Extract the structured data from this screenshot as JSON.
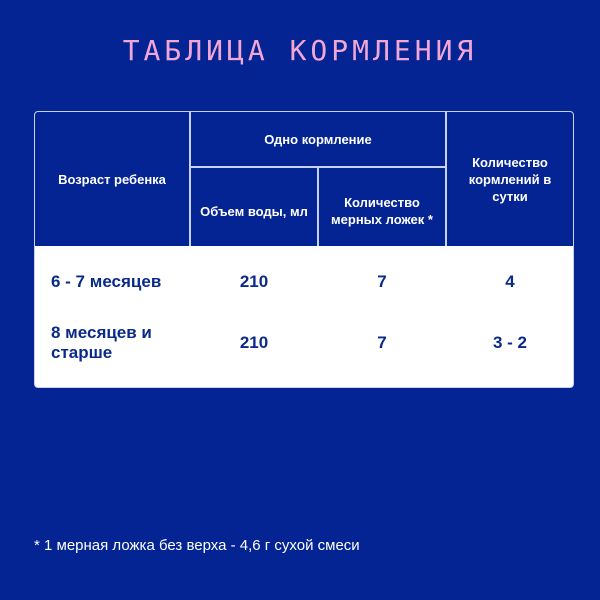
{
  "title": "ТАБЛИЦА КОРМЛЕНИЯ",
  "table": {
    "headers": {
      "age": "Возраст ребенка",
      "one_feeding": "Одно кормление",
      "water": "Объем воды, мл",
      "spoons": "Количество мерных ложек *",
      "per_day": "Количество кормлений в сутки"
    },
    "rows": [
      {
        "age": "6 - 7 месяцев",
        "water": "210",
        "spoons": "7",
        "per_day": "4"
      },
      {
        "age": "8 месяцев и старше",
        "water": "210",
        "spoons": "7",
        "per_day": "3 - 2"
      }
    ]
  },
  "footnote": "* 1 мерная ложка без верха - 4,6 г сухой смеси",
  "colors": {
    "background": "#032492",
    "title": "#f2a6d6",
    "table_body": "#ffffff",
    "body_text": "#0a2a8a"
  }
}
